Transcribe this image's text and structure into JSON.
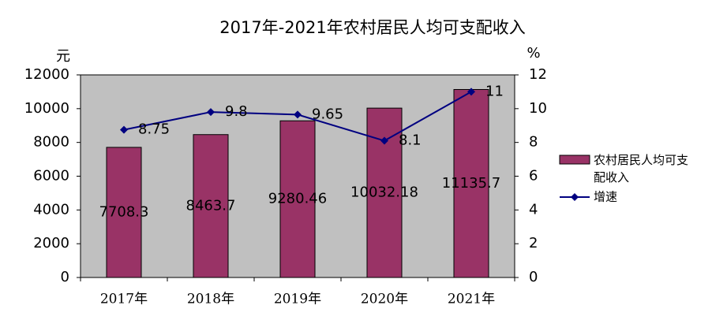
{
  "chart_data": {
    "type": "bar-line",
    "title": "2017年-2021年农村居民人均可支配收入",
    "y_unit": "元",
    "y2_unit": "%",
    "categories": [
      "2017年",
      "2018年",
      "2019年",
      "2020年",
      "2021年"
    ],
    "series": [
      {
        "name": "农村居民人均可支配收入",
        "type": "bar",
        "color": "#993366",
        "values": [
          7708.3,
          8463.7,
          9280.46,
          10032.18,
          11135.7
        ]
      },
      {
        "name": "增速",
        "type": "line",
        "axis": "y2",
        "color": "#000080",
        "values": [
          8.75,
          9.8,
          9.65,
          8.1,
          11
        ]
      }
    ],
    "ylim": [
      0,
      12000
    ],
    "yticks": [
      0,
      2000,
      4000,
      6000,
      8000,
      10000,
      12000
    ],
    "y2lim": [
      0,
      12
    ],
    "y2ticks": [
      0,
      2,
      4,
      6,
      8,
      10,
      12
    ],
    "plot_background": "#c0c0c0",
    "grid": false
  }
}
